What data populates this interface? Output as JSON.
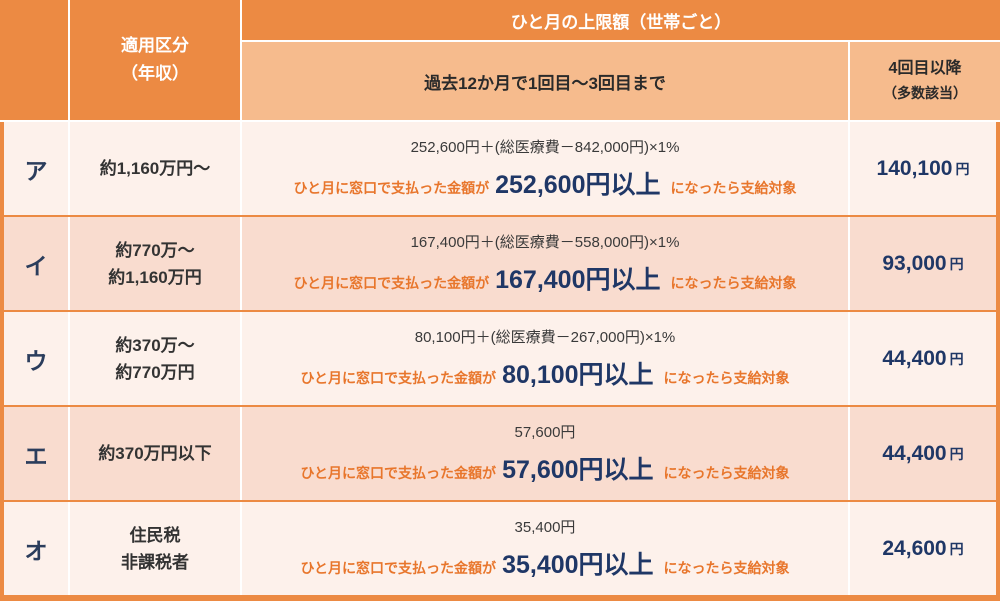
{
  "header": {
    "category_line1": "適用区分",
    "category_line2": "（年収）",
    "limit_title": "ひと月の上限額（世帯ごと）",
    "first_three": "過去12か月で1回目～3回目まで",
    "fourth_line1": "4回目以降",
    "fourth_line2": "（多数該当）"
  },
  "rows": [
    {
      "letter": "ア",
      "income_line1": "約1,160万円～",
      "formula": "252,600円＋(総医療費－842,000円)×1%",
      "condition_prefix": "ひと月に窓口で支払った金額が",
      "threshold": "252,600円以上",
      "condition_suffix": "になったら支給対象",
      "limit_value": "140,100",
      "limit_unit": "円"
    },
    {
      "letter": "イ",
      "income_line1": "約770万～",
      "income_line2": "約1,160万円",
      "formula": "167,400円＋(総医療費－558,000円)×1%",
      "condition_prefix": "ひと月に窓口で支払った金額が",
      "threshold": "167,400円以上",
      "condition_suffix": "になったら支給対象",
      "limit_value": "93,000",
      "limit_unit": "円"
    },
    {
      "letter": "ウ",
      "income_line1": "約370万～",
      "income_line2": "約770万円",
      "formula": "80,100円＋(総医療費－267,000円)×1%",
      "condition_prefix": "ひと月に窓口で支払った金額が",
      "threshold": "80,100円以上",
      "condition_suffix": "になったら支給対象",
      "limit_value": "44,400",
      "limit_unit": "円"
    },
    {
      "letter": "エ",
      "income_line1": "約370万円以下",
      "formula": "57,600円",
      "condition_prefix": "ひと月に窓口で支払った金額が",
      "threshold": "57,600円以上",
      "condition_suffix": "になったら支給対象",
      "limit_value": "44,400",
      "limit_unit": "円"
    },
    {
      "letter": "オ",
      "income_line1": "住民税",
      "income_line2": "非課税者",
      "formula": "35,400円",
      "condition_prefix": "ひと月に窓口で支払った金額が",
      "threshold": "35,400円以上",
      "condition_suffix": "になったら支給対象",
      "limit_value": "24,600",
      "limit_unit": "円"
    }
  ],
  "colors": {
    "header_orange": "#ec8a43",
    "header_light": "#f6bb8d",
    "row_light": "#fdf1eb",
    "row_pink": "#f9dccf",
    "accent_orange": "#e8762c",
    "navy": "#1f3766"
  }
}
